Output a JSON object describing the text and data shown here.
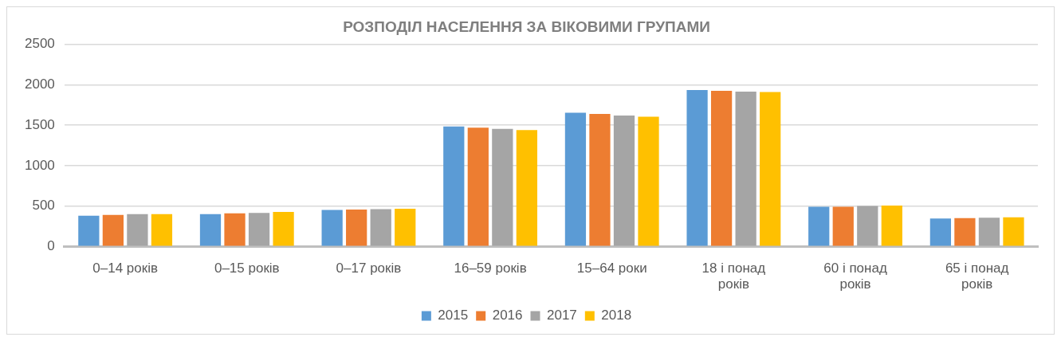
{
  "chart_data": {
    "type": "bar",
    "title": "РОЗПОДІЛ НАСЕЛЕННЯ ЗА ВІКОВИМИ ГРУПАМИ",
    "categories": [
      "0–14 років",
      "0–15 років",
      "0–17 років",
      "16–59 років",
      "15–64 роки",
      "18 і понад років",
      "60 і понад років",
      "65 і понад років"
    ],
    "series": [
      {
        "name": "2015",
        "color": "#5b9bd5",
        "values": [
          380,
          400,
          450,
          1485,
          1655,
          1935,
          490,
          345
        ]
      },
      {
        "name": "2016",
        "color": "#ed7d31",
        "values": [
          390,
          410,
          455,
          1470,
          1640,
          1925,
          490,
          350
        ]
      },
      {
        "name": "2017",
        "color": "#a5a5a5",
        "values": [
          400,
          415,
          460,
          1455,
          1620,
          1915,
          500,
          355
        ]
      },
      {
        "name": "2018",
        "color": "#ffc000",
        "values": [
          400,
          425,
          465,
          1440,
          1605,
          1910,
          505,
          360
        ]
      }
    ],
    "ylim": [
      0,
      2500
    ],
    "yticks": [
      0,
      500,
      1000,
      1500,
      2000,
      2500
    ],
    "grid": "y",
    "legend": "bottom"
  }
}
